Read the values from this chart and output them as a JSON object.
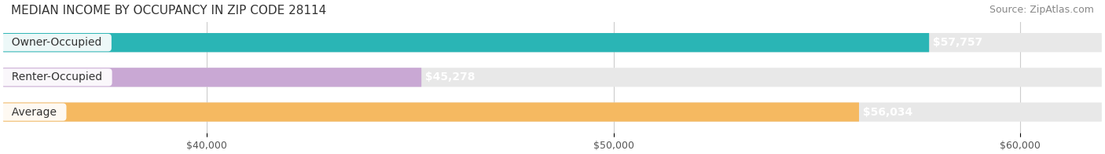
{
  "title": "MEDIAN INCOME BY OCCUPANCY IN ZIP CODE 28114",
  "source": "Source: ZipAtlas.com",
  "categories": [
    "Owner-Occupied",
    "Renter-Occupied",
    "Average"
  ],
  "values": [
    57757,
    45278,
    56034
  ],
  "bar_colors": [
    "#2ab5b5",
    "#c9a8d4",
    "#f5b961"
  ],
  "bar_bg_color": "#f0f0f0",
  "value_labels": [
    "$57,757",
    "$45,278",
    "$56,034"
  ],
  "xlim": [
    35000,
    62000
  ],
  "xticks": [
    40000,
    50000,
    60000
  ],
  "xtick_labels": [
    "$40,000",
    "$50,000",
    "$60,000"
  ],
  "title_fontsize": 11,
  "source_fontsize": 9,
  "label_fontsize": 10,
  "tick_fontsize": 9,
  "bar_height": 0.55,
  "background_color": "#ffffff"
}
